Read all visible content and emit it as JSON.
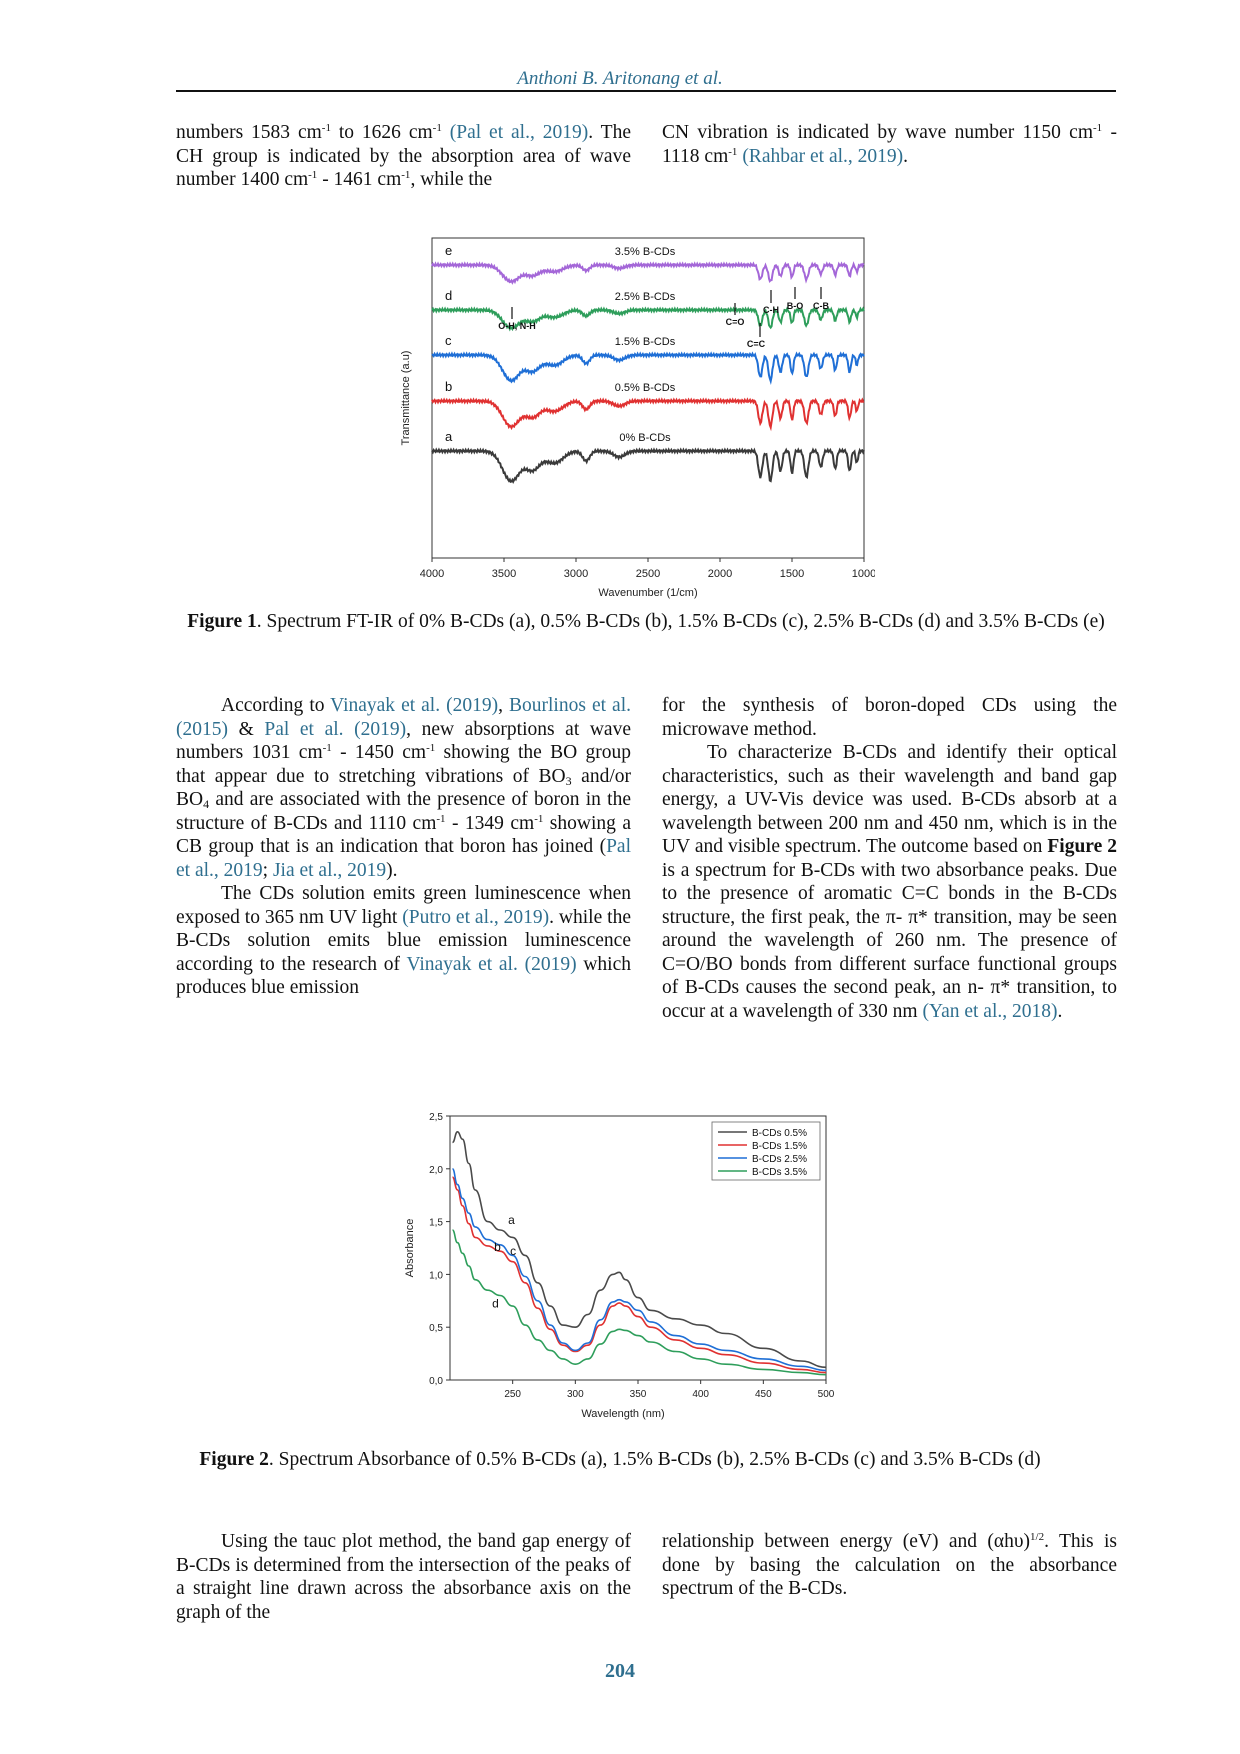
{
  "header": {
    "running_head": "Anthoni B. Aritonang et al."
  },
  "section1": {
    "left": {
      "t1": "numbers 1583 cm",
      "s1": "-1",
      "t2": " to 1626 cm",
      "s2": "-1",
      "c1": "(Pal et al., 2019)",
      "t3": ". The CH group is indicated by the absorption area of wave number 1400 cm",
      "s3": "-1",
      "t4": " - 1461 cm",
      "s4": "-1",
      "t5": ", while the"
    },
    "right": {
      "t1": "CN vibration is indicated by wave number 1150 cm",
      "s1": "-1",
      "t2": " - 1118 cm",
      "s2": "-1",
      "c1": "(Rahbar et al., 2019)",
      "t3": "."
    }
  },
  "figure1": {
    "caption_label": "Figure 1",
    "caption_text": ". Spectrum FT-IR of 0% B-CDs (a), 0.5% B-CDs (b), 1.5% B-CDs (c), 2.5% B-CDs (d) and 3.5% B-CDs (e)",
    "chart_data": {
      "type": "line",
      "xlabel": "Wavenumber (1/cm)",
      "ylabel": "Transmittance (a.u)",
      "xlim": [
        4000,
        1000
      ],
      "x_ticks": [
        "4000",
        "3500",
        "3000",
        "2500",
        "2000",
        "1500",
        "1000"
      ],
      "series": [
        {
          "letter": "a",
          "name": "0% B-CDs",
          "color": "#3a3a3a"
        },
        {
          "letter": "b",
          "name": "0.5% B-CDs",
          "color": "#e03131"
        },
        {
          "letter": "c",
          "name": "1.5% B-CDs",
          "color": "#1f6fd6"
        },
        {
          "letter": "d",
          "name": "2.5% B-CDs",
          "color": "#2e9e5b"
        },
        {
          "letter": "e",
          "name": "3.5% B-CDs",
          "color": "#a467d8"
        }
      ],
      "annotations": [
        "O-H, N-H",
        "C=O",
        "C-H",
        "B-O",
        "C-B",
        "C=C"
      ]
    }
  },
  "section2": {
    "left": {
      "p1_t1": "According to ",
      "p1_c1": "Vinayak et al. (2019)",
      "p1_t2": ", ",
      "p1_c2": "Bourlinos et al. (2015)",
      "p1_t3": " & ",
      "p1_c3": "Pal et al. (2019)",
      "p1_t4": ", new absorptions at wave numbers 1031 cm",
      "p1_s1": "-1",
      "p1_t5": " - 1450 cm",
      "p1_s2": "-1",
      "p1_t6": " showing the BO group that appear due to stretching vibrations of BO",
      "p1_sub1": "3",
      "p1_t7": " and/or BO",
      "p1_sub2": "4",
      "p1_t8": " and are associated with the presence of boron in the structure of B-CDs and 1110 cm",
      "p1_s3": "-1",
      "p1_t9": " - 1349 cm",
      "p1_s4": "-1",
      "p1_t10": " showing a CB group that is an indication that boron has joined (",
      "p1_c4": "Pal et al., 2019",
      "p1_t11": "; ",
      "p1_c5": "Jia et al., 2019",
      "p1_t12": ").",
      "p2_t1": "The CDs solution emits green luminescence when exposed to 365 nm UV light ",
      "p2_c1": "(Putro et al., 2019)",
      "p2_t2": ". while the B-CDs solution emits blue emission luminescence according to the research of ",
      "p2_c2": "Vinayak et al. (2019)",
      "p2_t3": " which produces blue emission"
    },
    "right": {
      "p1": "for the synthesis of boron-doped CDs using the microwave method.",
      "p2_t1": "To characterize B-CDs and identify their optical characteristics, such as their wavelength and band gap energy, a UV-Vis device was used. B-CDs absorb at a wavelength between 200 nm and 450 nm, which is in the UV and visible spectrum. The outcome based on ",
      "p2_b1": "Figure 2",
      "p2_t2": " is a spectrum for B-CDs with two absorbance peaks. Due to the presence of aromatic C=C bonds in the B-CDs structure, the first peak, the π- π* transition, may be seen around the wavelength of 260 nm. The presence of C=O/BO bonds from different surface functional groups of B-CDs causes the second peak, an n- π* transition, to occur at a wavelength of 330 nm ",
      "p2_c1": "(Yan et al., 2018)",
      "p2_t3": "."
    }
  },
  "figure2": {
    "caption_label": "Figure 2",
    "caption_text": ". Spectrum Absorbance of 0.5% B-CDs (a), 1.5% B-CDs (b), 2.5% B-CDs (c) and 3.5% B-CDs (d)",
    "chart_data": {
      "type": "line",
      "xlabel": "Wavelength (nm)",
      "ylabel": "Absorbance",
      "xlim": [
        200,
        500
      ],
      "ylim": [
        0,
        2.5
      ],
      "x_ticks": [
        "250",
        "300",
        "350",
        "400",
        "450",
        "500"
      ],
      "y_ticks": [
        "0,0",
        "0,5",
        "1,0",
        "1,5",
        "2,0",
        "2,5"
      ],
      "legend_position": "top-right",
      "x": [
        202,
        206,
        210,
        215,
        220,
        230,
        240,
        250,
        260,
        270,
        280,
        290,
        300,
        310,
        320,
        330,
        335,
        340,
        350,
        360,
        380,
        400,
        420,
        450,
        480,
        500
      ],
      "series": [
        {
          "name": "B-CDs 0.5%",
          "letter": "a",
          "color": "#4a4a4a",
          "values": [
            2.25,
            2.35,
            2.28,
            2.05,
            1.8,
            1.5,
            1.42,
            1.35,
            1.18,
            0.92,
            0.7,
            0.52,
            0.5,
            0.62,
            0.85,
            1.0,
            1.02,
            0.95,
            0.78,
            0.66,
            0.58,
            0.52,
            0.44,
            0.3,
            0.18,
            0.12
          ]
        },
        {
          "name": "B-CDs 1.5%",
          "letter": "b",
          "color": "#e03131",
          "values": [
            1.92,
            1.8,
            1.65,
            1.48,
            1.35,
            1.27,
            1.22,
            1.12,
            0.92,
            0.68,
            0.48,
            0.33,
            0.27,
            0.33,
            0.52,
            0.7,
            0.73,
            0.7,
            0.6,
            0.5,
            0.38,
            0.3,
            0.24,
            0.16,
            0.1,
            0.07
          ]
        },
        {
          "name": "B-CDs 2.5%",
          "letter": "c",
          "color": "#1f6fd6",
          "values": [
            2.0,
            1.85,
            1.72,
            1.58,
            1.45,
            1.33,
            1.28,
            1.18,
            0.98,
            0.75,
            0.52,
            0.35,
            0.28,
            0.35,
            0.57,
            0.74,
            0.76,
            0.74,
            0.66,
            0.55,
            0.42,
            0.34,
            0.28,
            0.2,
            0.13,
            0.09
          ]
        },
        {
          "name": "B-CDs 3.5%",
          "letter": "d",
          "color": "#2e9e5b",
          "values": [
            1.42,
            1.3,
            1.2,
            1.08,
            0.95,
            0.85,
            0.8,
            0.7,
            0.52,
            0.38,
            0.28,
            0.2,
            0.15,
            0.2,
            0.34,
            0.46,
            0.48,
            0.47,
            0.42,
            0.36,
            0.27,
            0.2,
            0.15,
            0.1,
            0.07,
            0.05
          ]
        }
      ]
    }
  },
  "section3": {
    "left": "Using the tauc plot method, the band gap energy of B-CDs is determined from the intersection of the peaks of a straight line drawn across the absorbance axis on the graph of the",
    "right": {
      "t1": "relationship between energy (eV) and (αhυ)",
      "s1": "1/2",
      "t2": ". This is done by basing the calculation on the absorbance spectrum of the B-CDs."
    }
  },
  "footer": {
    "page_number": "204"
  }
}
